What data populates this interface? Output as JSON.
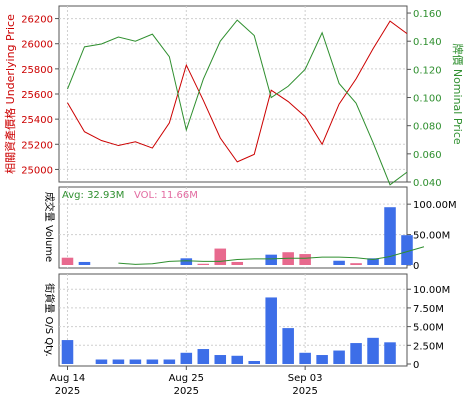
{
  "chart_data": [
    {
      "type": "line",
      "panel": "price",
      "x": [
        "2025-08-14",
        "2025-08-15",
        "2025-08-18",
        "2025-08-19",
        "2025-08-20",
        "2025-08-21",
        "2025-08-22",
        "2025-08-25",
        "2025-08-26",
        "2025-08-27",
        "2025-08-28",
        "2025-08-29",
        "2025-09-01",
        "2025-09-02",
        "2025-09-03",
        "2025-09-04",
        "2025-09-05",
        "2025-09-08",
        "2025-09-09",
        "2025-09-10",
        "2025-09-11"
      ],
      "left_axis": {
        "label": "相關資產價格 Underlying Price",
        "color": "#cc0000",
        "ylim": [
          24900,
          26300
        ],
        "ticks": [
          25000,
          25200,
          25400,
          25600,
          25800,
          26000,
          26200
        ]
      },
      "right_axis": {
        "label": "牌價 Nominal Price",
        "color": "#2f8f2f",
        "ylim": [
          0.04,
          0.165
        ],
        "ticks": [
          "0.040",
          "0.060",
          "0.080",
          "0.100",
          "0.120",
          "0.140",
          "0.160"
        ]
      },
      "series": [
        {
          "axis": "left",
          "color": "#cc0000",
          "values": [
            25530,
            25300,
            25230,
            25190,
            25220,
            25170,
            25370,
            25830,
            25550,
            25250,
            25060,
            25120,
            25630,
            25540,
            25420,
            25200,
            25520,
            25720,
            25960,
            26180,
            26080
          ]
        },
        {
          "axis": "right",
          "color": "#2f8f2f",
          "values": [
            0.106,
            0.136,
            0.138,
            0.143,
            0.14,
            0.145,
            0.129,
            0.077,
            0.113,
            0.14,
            0.155,
            0.144,
            0.1,
            0.108,
            0.12,
            0.146,
            0.11,
            0.096,
            0.068,
            0.038,
            0.047
          ]
        }
      ]
    },
    {
      "type": "bar",
      "panel": "volume",
      "axis_label": "成交量 Volume",
      "ylim": [
        0,
        120
      ],
      "unit": "M",
      "ticks": [
        "100.00M",
        "50.00M",
        "0"
      ],
      "legend": {
        "avg": "Avg: 32.93M",
        "avg_color": "#2f8f2f",
        "vol": "VOL: 11.66M",
        "vol_color": "#e26aa0"
      },
      "bars": [
        {
          "x": "2025-08-14",
          "value": 12,
          "color": "#e8698e"
        },
        {
          "x": "2025-08-15",
          "value": 5,
          "color": "#3d6ee8"
        },
        {
          "x": "2025-08-25",
          "value": 11,
          "color": "#3d6ee8"
        },
        {
          "x": "2025-08-26",
          "value": 2,
          "color": "#e8698e"
        },
        {
          "x": "2025-08-27",
          "value": 27,
          "color": "#e8698e"
        },
        {
          "x": "2025-08-28",
          "value": 5,
          "color": "#e8698e"
        },
        {
          "x": "2025-09-01",
          "value": 17,
          "color": "#3d6ee8"
        },
        {
          "x": "2025-09-02",
          "value": 21,
          "color": "#e8698e"
        },
        {
          "x": "2025-09-03",
          "value": 18,
          "color": "#e8698e"
        },
        {
          "x": "2025-09-05",
          "value": 7,
          "color": "#3d6ee8"
        },
        {
          "x": "2025-09-08",
          "value": 3,
          "color": "#e8698e"
        },
        {
          "x": "2025-09-09",
          "value": 11,
          "color": "#3d6ee8"
        },
        {
          "x": "2025-09-10",
          "value": 95,
          "color": "#3d6ee8"
        },
        {
          "x": "2025-09-11",
          "value": 49,
          "color": "#3d6ee8"
        }
      ],
      "avg_line": {
        "color": "#2f8f2f",
        "x_from": "2025-08-19",
        "values": [
          3,
          1,
          2,
          6,
          7,
          6,
          6,
          9,
          10,
          10,
          11,
          11,
          13,
          13,
          12,
          9,
          14,
          22,
          30
        ]
      }
    },
    {
      "type": "bar",
      "panel": "outstanding",
      "axis_label": "街貨量 O/S Qty.",
      "ylim": [
        0,
        11.5
      ],
      "unit": "M",
      "ticks": [
        "10.00M",
        "7.50M",
        "5.00M",
        "2.50M",
        "0"
      ],
      "bar_color": "#3d6ee8",
      "bars": [
        {
          "x": "2025-08-14",
          "value": 3.2
        },
        {
          "x": "2025-08-18",
          "value": 0.6
        },
        {
          "x": "2025-08-19",
          "value": 0.6
        },
        {
          "x": "2025-08-20",
          "value": 0.6
        },
        {
          "x": "2025-08-21",
          "value": 0.6
        },
        {
          "x": "2025-08-22",
          "value": 0.6
        },
        {
          "x": "2025-08-25",
          "value": 1.5
        },
        {
          "x": "2025-08-26",
          "value": 2.0
        },
        {
          "x": "2025-08-27",
          "value": 1.2
        },
        {
          "x": "2025-08-28",
          "value": 1.1
        },
        {
          "x": "2025-08-29",
          "value": 0.4
        },
        {
          "x": "2025-09-01",
          "value": 8.9
        },
        {
          "x": "2025-09-02",
          "value": 4.8
        },
        {
          "x": "2025-09-03",
          "value": 1.5
        },
        {
          "x": "2025-09-04",
          "value": 1.2
        },
        {
          "x": "2025-09-05",
          "value": 1.8
        },
        {
          "x": "2025-09-08",
          "value": 2.8
        },
        {
          "x": "2025-09-09",
          "value": 3.5
        },
        {
          "x": "2025-09-10",
          "value": 2.9
        }
      ],
      "x_ticks": [
        {
          "x": "2025-08-14",
          "line1": "Aug 14",
          "line2": "2025"
        },
        {
          "x": "2025-08-25",
          "line1": "Aug 25",
          "line2": "2025"
        },
        {
          "x": "2025-09-03",
          "line1": "Sep 03",
          "line2": "2025"
        }
      ]
    }
  ]
}
